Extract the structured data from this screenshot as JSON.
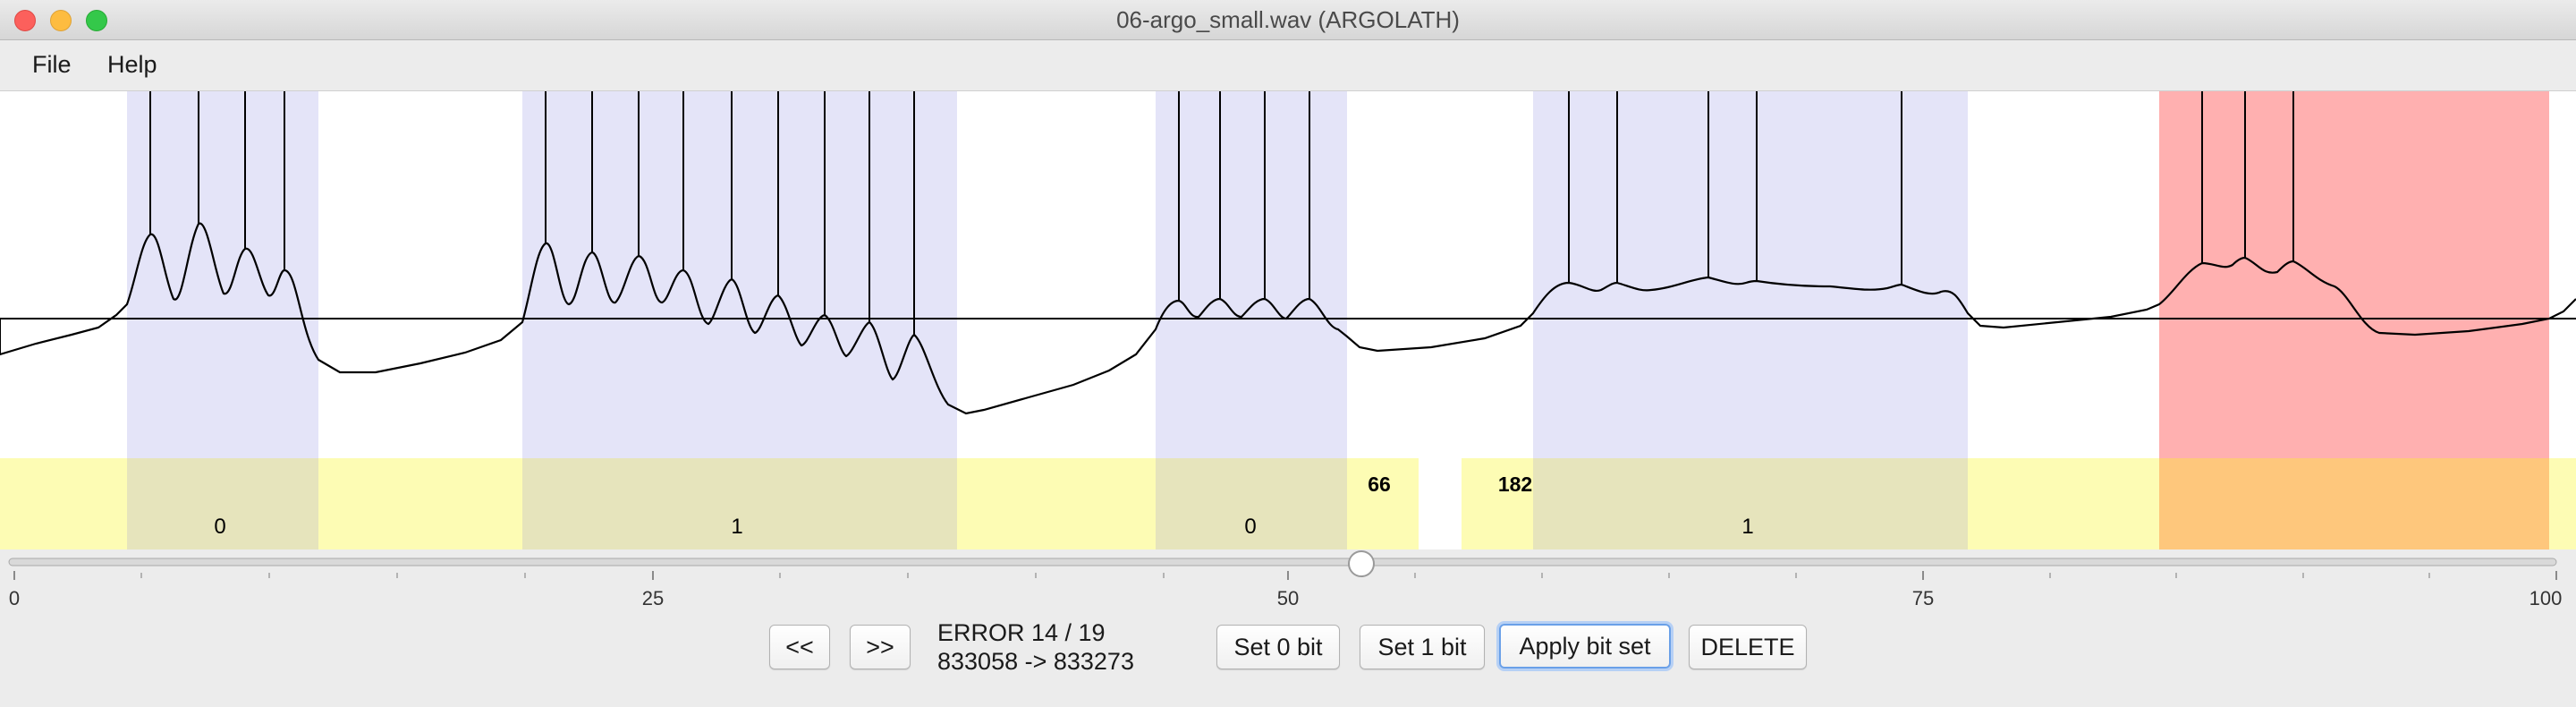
{
  "window": {
    "title": "06-argo_small.wav (ARGOLATH)"
  },
  "menu": {
    "file": "File",
    "help": "Help"
  },
  "segments": [
    {
      "kind": "bit",
      "label": "0"
    },
    {
      "kind": "bit",
      "label": "1"
    },
    {
      "kind": "bit",
      "label": "0"
    },
    {
      "kind": "gap",
      "label": "66"
    },
    {
      "kind": "gap",
      "label": "182"
    },
    {
      "kind": "bit",
      "label": "1"
    },
    {
      "kind": "error",
      "label": ""
    }
  ],
  "colors": {
    "bit_region": "#e4e4f8",
    "error_region": "#ffb0b0",
    "timeline": "#fdfcb4",
    "timeline_bit": "#e6e4bc",
    "timeline_error": "#fec77c",
    "waveform": "#000000"
  },
  "slider": {
    "min": 0,
    "max": 100,
    "value": 53.5,
    "tick_labels": [
      "0",
      "25",
      "50",
      "75",
      "100"
    ]
  },
  "controls": {
    "prev_label": "<<",
    "next_label": ">>",
    "error_status": "ERROR 14 / 19",
    "range_status": "833058 -> 833273",
    "set0_label": "Set 0 bit",
    "set1_label": "Set 1 bit",
    "apply_label": "Apply bit set",
    "delete_label": "DELETE"
  }
}
